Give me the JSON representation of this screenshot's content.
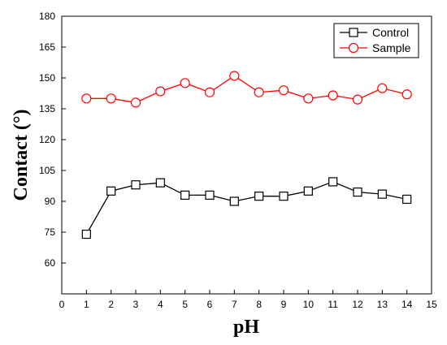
{
  "chart_data": {
    "type": "line",
    "xlabel": "pH",
    "ylabel": "Contact (°)",
    "xlim": [
      0,
      15
    ],
    "ylim": [
      45,
      180
    ],
    "xticks": [
      0,
      1,
      2,
      3,
      4,
      5,
      6,
      7,
      8,
      9,
      10,
      11,
      12,
      13,
      14,
      15
    ],
    "yticks": [
      60,
      75,
      90,
      105,
      120,
      135,
      150,
      165,
      180
    ],
    "legend_position": "top-right",
    "grid": false,
    "x": [
      1,
      2,
      3,
      4,
      5,
      6,
      7,
      8,
      9,
      10,
      11,
      12,
      13,
      14
    ],
    "series": [
      {
        "name": "Control",
        "color": "#000000",
        "marker": "square",
        "values": [
          74,
          95,
          98,
          99,
          93,
          93,
          90,
          92.5,
          92.5,
          95,
          99.5,
          94.5,
          93.5,
          91
        ]
      },
      {
        "name": "Sample",
        "color": "#ff0000",
        "marker": "circle",
        "values": [
          140,
          140,
          138,
          143.5,
          147.5,
          143,
          151,
          143,
          144,
          140,
          141.5,
          139.5,
          145,
          142
        ]
      }
    ]
  }
}
